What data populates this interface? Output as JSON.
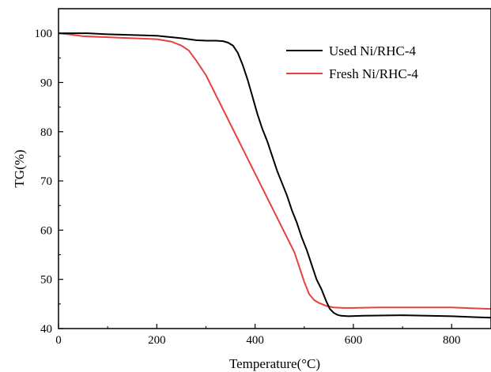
{
  "chart_data": {
    "type": "line",
    "title": "",
    "xlabel": "Temperature(°C)",
    "ylabel": "TG(%)",
    "xlim": [
      0,
      880
    ],
    "ylim": [
      40,
      105
    ],
    "x_ticks": [
      0,
      200,
      400,
      600,
      800
    ],
    "y_ticks": [
      40,
      50,
      60,
      70,
      80,
      90,
      100
    ],
    "x_tick_labels": [
      "0",
      "200",
      "400",
      "600",
      "800"
    ],
    "y_tick_labels": [
      "40",
      "50",
      "60",
      "70",
      "80",
      "90",
      "100"
    ],
    "grid": false,
    "legend_position": "top-right",
    "series": [
      {
        "name": "Used Ni/RHC-4",
        "color": "#000000",
        "x": [
          0,
          60,
          100,
          200,
          250,
          280,
          300,
          320,
          335,
          345,
          355,
          365,
          375,
          385,
          395,
          405,
          415,
          425,
          435,
          445,
          455,
          465,
          475,
          485,
          495,
          505,
          515,
          525,
          535,
          545,
          552,
          560,
          567,
          575,
          590,
          620,
          700,
          800,
          850,
          880
        ],
        "y": [
          100,
          100,
          99.8,
          99.5,
          99,
          98.6,
          98.5,
          98.5,
          98.4,
          98.1,
          97.5,
          96,
          93.5,
          90.5,
          87,
          83.5,
          80.5,
          78,
          75,
          72,
          69.5,
          67,
          64,
          61.5,
          58.5,
          56,
          53,
          50,
          48,
          45.5,
          44,
          43.2,
          42.8,
          42.6,
          42.5,
          42.6,
          42.7,
          42.5,
          42.3,
          42.2
        ]
      },
      {
        "name": "Fresh Ni/RHC-4",
        "color": "#e8403c",
        "x": [
          0,
          20,
          50,
          100,
          150,
          200,
          230,
          250,
          265,
          280,
          290,
          300,
          310,
          320,
          330,
          340,
          350,
          360,
          370,
          380,
          390,
          400,
          410,
          420,
          430,
          440,
          450,
          460,
          470,
          480,
          490,
          500,
          510,
          520,
          530,
          545,
          560,
          580,
          600,
          650,
          700,
          750,
          800,
          850,
          880
        ],
        "y": [
          100,
          99.8,
          99.4,
          99.2,
          99,
          98.8,
          98.3,
          97.5,
          96.5,
          94.5,
          93,
          91.5,
          89.5,
          87.5,
          85.5,
          83.5,
          81.5,
          79.5,
          77.5,
          75.5,
          73.5,
          71.5,
          69.5,
          67.5,
          65.5,
          63.5,
          61.5,
          59.5,
          57.5,
          55.5,
          52.5,
          49.5,
          47,
          45.8,
          45.2,
          44.6,
          44.3,
          44.2,
          44.2,
          44.3,
          44.3,
          44.3,
          44.3,
          44.1,
          44
        ]
      }
    ]
  }
}
